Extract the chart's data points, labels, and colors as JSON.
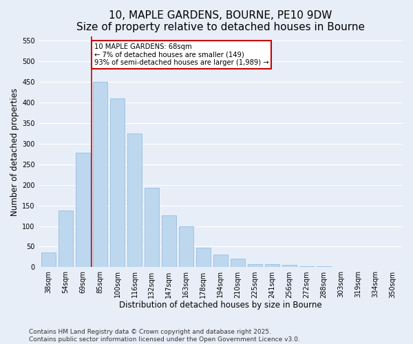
{
  "title": "10, MAPLE GARDENS, BOURNE, PE10 9DW",
  "subtitle": "Size of property relative to detached houses in Bourne",
  "xlabel": "Distribution of detached houses by size in Bourne",
  "ylabel": "Number of detached properties",
  "bar_labels": [
    "38sqm",
    "54sqm",
    "69sqm",
    "85sqm",
    "100sqm",
    "116sqm",
    "132sqm",
    "147sqm",
    "163sqm",
    "178sqm",
    "194sqm",
    "210sqm",
    "225sqm",
    "241sqm",
    "256sqm",
    "272sqm",
    "288sqm",
    "303sqm",
    "319sqm",
    "334sqm",
    "350sqm"
  ],
  "bar_values": [
    35,
    138,
    278,
    450,
    410,
    325,
    192,
    126,
    100,
    47,
    31,
    20,
    8,
    7,
    5,
    2,
    2,
    1,
    1,
    1,
    1
  ],
  "bar_color": "#bdd7ee",
  "bar_edge_color": "#9dc3e6",
  "vline_x_index": 2,
  "vline_color": "#cc0000",
  "ylim": [
    0,
    560
  ],
  "yticks": [
    0,
    50,
    100,
    150,
    200,
    250,
    300,
    350,
    400,
    450,
    500,
    550
  ],
  "annotation_title": "10 MAPLE GARDENS: 68sqm",
  "annotation_line1": "← 7% of detached houses are smaller (149)",
  "annotation_line2": "93% of semi-detached houses are larger (1,989) →",
  "annotation_box_color": "#ffffff",
  "annotation_box_edge": "#cc0000",
  "footer1": "Contains HM Land Registry data © Crown copyright and database right 2025.",
  "footer2": "Contains public sector information licensed under the Open Government Licence v3.0.",
  "background_color": "#e8eef8",
  "grid_color": "#ffffff",
  "title_fontsize": 11,
  "axis_label_fontsize": 8.5,
  "tick_fontsize": 7,
  "footer_fontsize": 6.5
}
